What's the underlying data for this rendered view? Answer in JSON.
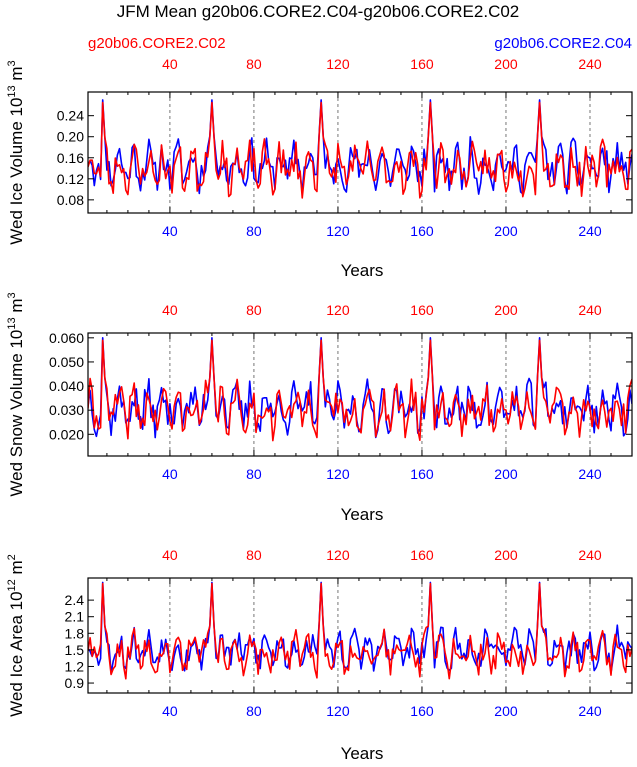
{
  "title": "JFM Mean g20b06.CORE2.C04-g20b06.CORE2.C02",
  "legend": {
    "left": {
      "label": "g20b06.CORE2.C02",
      "color": "#ff0000"
    },
    "right": {
      "label": "g20b06.CORE2.C04",
      "color": "#0000ff"
    }
  },
  "colors": {
    "red": "#ff0000",
    "blue": "#0000ff",
    "axis": "#000000"
  },
  "chart_data": [
    {
      "type": "line",
      "xlabel": "Years",
      "ylabel": "Wed Ice Volume 10",
      "ylabel_exp": "13",
      "ylabel_unit": " m",
      "ylabel_unit_exp": "3",
      "xlim": [
        1,
        260
      ],
      "ylim": [
        0.055,
        0.285
      ],
      "yticks": [
        0.08,
        0.12,
        0.16,
        0.2,
        0.24
      ],
      "yticklabels": [
        "0.08",
        "0.12",
        "0.16",
        "0.20",
        "0.24"
      ],
      "xticks": [
        40,
        80,
        120,
        160,
        200,
        240
      ],
      "xticklabels": [
        "40",
        "80",
        "120",
        "160",
        "200",
        "240"
      ],
      "grid_x": [
        40,
        80,
        120,
        160,
        200,
        240
      ],
      "series": [
        {
          "name": "g20b06.CORE2.C04",
          "color": "#0000ff",
          "base": 0.145,
          "amp": 0.04,
          "spike": 0.27,
          "seed": 11
        },
        {
          "name": "g20b06.CORE2.C02",
          "color": "#ff0000",
          "base": 0.14,
          "amp": 0.042,
          "spike": 0.265,
          "seed": 23
        }
      ]
    },
    {
      "type": "line",
      "xlabel": "Years",
      "ylabel": "Wed Snow Volume 10",
      "ylabel_exp": "13",
      "ylabel_unit": " m",
      "ylabel_unit_exp": "3",
      "xlim": [
        1,
        260
      ],
      "ylim": [
        0.011,
        0.062
      ],
      "yticks": [
        0.02,
        0.03,
        0.04,
        0.05,
        0.06
      ],
      "yticklabels": [
        "0.020",
        "0.030",
        "0.040",
        "0.050",
        "0.060"
      ],
      "xticks": [
        40,
        80,
        120,
        160,
        200,
        240
      ],
      "xticklabels": [
        "40",
        "80",
        "120",
        "160",
        "200",
        "240"
      ],
      "grid_x": [
        40,
        80,
        120,
        160,
        200,
        240
      ],
      "series": [
        {
          "name": "g20b06.CORE2.C04",
          "color": "#0000ff",
          "base": 0.031,
          "amp": 0.009,
          "spike": 0.06,
          "seed": 37
        },
        {
          "name": "g20b06.CORE2.C02",
          "color": "#ff0000",
          "base": 0.03,
          "amp": 0.0095,
          "spike": 0.059,
          "seed": 41
        }
      ]
    },
    {
      "type": "line",
      "xlabel": "Years",
      "ylabel": "Wed Ice Area 10",
      "ylabel_exp": "12",
      "ylabel_unit": " m",
      "ylabel_unit_exp": "2",
      "xlim": [
        1,
        260
      ],
      "ylim": [
        0.72,
        2.8
      ],
      "yticks": [
        0.9,
        1.2,
        1.5,
        1.8,
        2.1,
        2.4
      ],
      "yticklabels": [
        "0.9",
        "1.2",
        "1.5",
        "1.8",
        "2.1",
        "2.4"
      ],
      "xticks": [
        40,
        80,
        120,
        160,
        200,
        240
      ],
      "xticklabels": [
        "40",
        "80",
        "120",
        "160",
        "200",
        "240"
      ],
      "grid_x": [
        40,
        80,
        120,
        160,
        200,
        240
      ],
      "series": [
        {
          "name": "g20b06.CORE2.C04",
          "color": "#0000ff",
          "base": 1.5,
          "amp": 0.32,
          "spike": 2.72,
          "seed": 53
        },
        {
          "name": "g20b06.CORE2.C02",
          "color": "#ff0000",
          "base": 1.45,
          "amp": 0.34,
          "spike": 2.7,
          "seed": 59
        }
      ]
    }
  ]
}
